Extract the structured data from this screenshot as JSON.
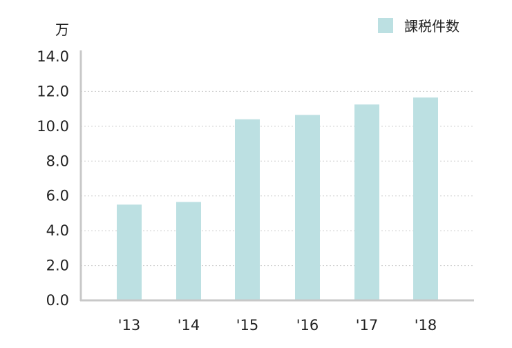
{
  "chart_data": {
    "type": "bar",
    "title": "",
    "xlabel": "",
    "ylabel": "",
    "unit_label": "万",
    "categories": [
      "'13",
      "'14",
      "'15",
      "'16",
      "'17",
      "'18"
    ],
    "series": [
      {
        "name": "課税件数",
        "values": [
          5.5,
          5.65,
          10.4,
          10.65,
          11.25,
          11.65
        ],
        "color": "#bce0e2"
      }
    ],
    "ylim": [
      0,
      14
    ],
    "yticks": [
      "0.0",
      "2.0",
      "4.0",
      "6.0",
      "8.0",
      "10.0",
      "12.0",
      "14.0"
    ],
    "grid": true,
    "legend_position": "top-right",
    "colors": {
      "bar": "#bce0e2",
      "axis": "#c8c8c8",
      "grid": "#cccccc",
      "text": "#222222"
    }
  }
}
